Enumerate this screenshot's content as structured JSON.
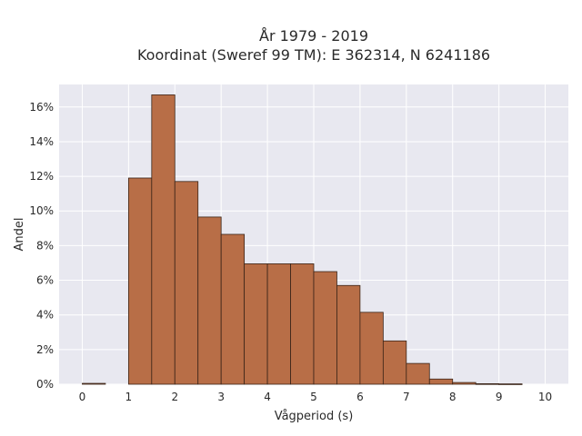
{
  "chart_data": {
    "type": "bar",
    "title_line1": "År 1979 - 2019",
    "title_line2": "Koordinat (Sweref 99 TM): E 362314, N 6241186",
    "xlabel": "Vågperiod (s)",
    "ylabel": "Andel",
    "bin_width": 0.5,
    "bin_starts": [
      0,
      0.5,
      1,
      1.5,
      2,
      2.5,
      3,
      3.5,
      4,
      4.5,
      5,
      5.5,
      6,
      6.5,
      7,
      7.5,
      8,
      8.5,
      9,
      9.5
    ],
    "values": [
      0.05,
      0,
      11.9,
      16.7,
      11.7,
      9.65,
      8.65,
      6.95,
      6.95,
      6.95,
      6.5,
      5.7,
      4.15,
      2.5,
      1.2,
      0.3,
      0.1,
      0.03,
      0.02,
      0
    ],
    "xlim": [
      -0.5,
      10.5
    ],
    "ylim": [
      0,
      17.3
    ],
    "x_ticks": [
      0,
      1,
      2,
      3,
      4,
      5,
      6,
      7,
      8,
      9,
      10
    ],
    "y_ticks": [
      0,
      2,
      4,
      6,
      8,
      10,
      12,
      14,
      16
    ],
    "y_tick_suffix": "%",
    "grid": true,
    "bar_color": "#b86e47",
    "bar_edge_color": "#3a2418",
    "plot_background": "#e8e8f0"
  }
}
